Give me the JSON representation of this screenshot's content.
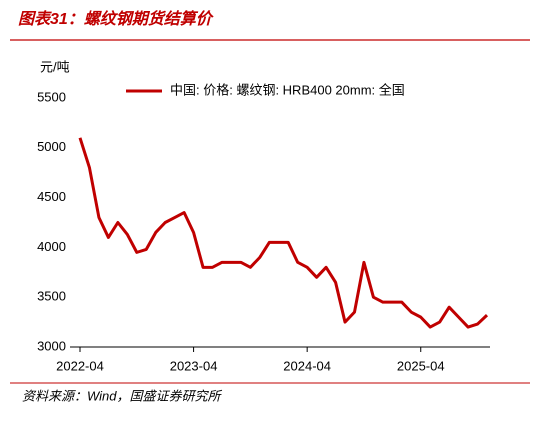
{
  "chart_data": {
    "type": "line",
    "title": "图表31：螺纹钢期货结算价",
    "y_unit": "元/吨",
    "source": "资料来源：Wind，国盛证券研究所",
    "x": [
      "2022-04",
      "2022-05",
      "2022-06",
      "2022-07",
      "2022-08",
      "2022-09",
      "2022-10",
      "2022-11",
      "2022-12",
      "2023-01",
      "2023-02",
      "2023-03",
      "2023-04",
      "2023-05",
      "2023-06",
      "2023-07",
      "2023-08",
      "2023-09",
      "2023-10",
      "2023-11",
      "2023-12",
      "2024-01",
      "2024-02",
      "2024-03",
      "2024-04",
      "2024-05",
      "2024-06",
      "2024-07",
      "2024-08",
      "2024-09",
      "2024-10",
      "2024-11",
      "2024-12",
      "2025-01",
      "2025-02",
      "2025-03",
      "2025-04",
      "2025-05",
      "2025-06",
      "2025-07",
      "2025-08",
      "2025-09",
      "2025-10",
      "2025-11"
    ],
    "series": [
      {
        "name": "中国: 价格: 螺纹钢: HRB400 20mm: 全国",
        "color": "#c00000",
        "values": [
          5100,
          4800,
          4300,
          4100,
          4250,
          4130,
          3950,
          3980,
          4150,
          4250,
          4300,
          4350,
          4150,
          3800,
          3800,
          3850,
          3850,
          3850,
          3800,
          3900,
          4050,
          4050,
          4050,
          3850,
          3800,
          3700,
          3800,
          3650,
          3250,
          3350,
          3850,
          3500,
          3450,
          3450,
          3450,
          3350,
          3300,
          3200,
          3250,
          3400,
          3300,
          3200,
          3230,
          3320
        ]
      }
    ],
    "xlim": [
      "2022-04",
      "2025-11"
    ],
    "xticks": [
      "2022-04",
      "2023-04",
      "2024-04",
      "2025-04"
    ],
    "ylim": [
      3000,
      5500
    ],
    "yticks": [
      3000,
      3500,
      4000,
      4500,
      5000,
      5500
    ],
    "legend": "top"
  }
}
